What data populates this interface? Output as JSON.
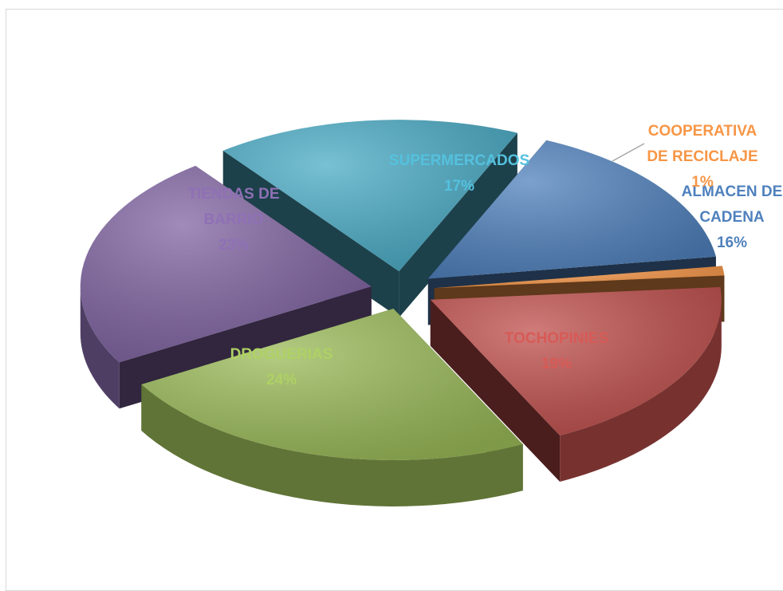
{
  "chart_data": {
    "type": "pie",
    "style": "3d-exploded",
    "legend": "none",
    "slices": [
      {
        "label": "ALMACEN DE CADENA",
        "label_lines": [
          "ALMACEN DE",
          "CADENA"
        ],
        "value": 16,
        "value_label": "16%",
        "color": "#4f81bd",
        "label_color": "#4f81bd"
      },
      {
        "label": "COOPERATIVA DE RECICLAJE",
        "label_lines": [
          "COOPERATIVA",
          "DE RECICLAJE"
        ],
        "value": 1,
        "value_label": "1%",
        "color": "#f79646",
        "label_color": "#f79646"
      },
      {
        "label": "TOCHOPINIES",
        "label_lines": [
          "TOCHOPINIES"
        ],
        "value": 19,
        "value_label": "19%",
        "color": "#c0504d",
        "label_color": "#c0504d"
      },
      {
        "label": "DROGUERIAS",
        "label_lines": [
          "DROGUERIAS"
        ],
        "value": 24,
        "value_label": "24%",
        "color": "#9bbb59",
        "label_color": "#9bbb59"
      },
      {
        "label": "TIENDAS DE BARRIO",
        "label_lines": [
          "TIENDAS DE",
          "BARRIO"
        ],
        "value": 23,
        "value_label": "23%",
        "color": "#8064a2",
        "label_color": "#8064a2"
      },
      {
        "label": "SUPERMERCADOS",
        "label_lines": [
          "SUPERMERCADOS"
        ],
        "value": 17,
        "value_label": "17%",
        "color": "#4bacc6",
        "label_color": "#4bacc6"
      }
    ]
  }
}
